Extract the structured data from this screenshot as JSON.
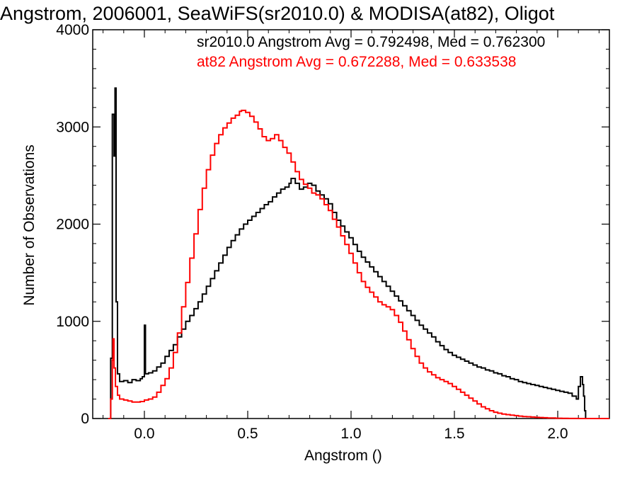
{
  "chart_data": {
    "type": "line",
    "title": "Angstrom, 2006001, SeaWiFS(sr2010.0) & MODISA(at82), Oligot",
    "xlabel": "Angstrom ()",
    "ylabel": "Number of Observations",
    "xlim": [
      -0.25,
      2.25
    ],
    "ylim": [
      0,
      4000
    ],
    "xticks": [
      "0.0",
      "0.5",
      "1.0",
      "1.5",
      "2.0"
    ],
    "yticks": [
      "0",
      "1000",
      "2000",
      "3000",
      "4000"
    ],
    "legend_placement": "top-right",
    "annotations": [
      {
        "text": "sr2010.0 Angstrom Avg = 0.792498, Med = 0.762300",
        "color": "#000000"
      },
      {
        "text": "at82 Angstrom Avg = 0.672288, Med = 0.633538",
        "color": "#ff0000"
      }
    ],
    "series": [
      {
        "color": "#000000",
        "points": [
          [
            -0.165,
            0
          ],
          [
            -0.163,
            620
          ],
          [
            -0.155,
            3130
          ],
          [
            -0.147,
            2700
          ],
          [
            -0.142,
            3400
          ],
          [
            -0.137,
            1200
          ],
          [
            -0.13,
            460
          ],
          [
            -0.12,
            380
          ],
          [
            -0.1,
            390
          ],
          [
            -0.08,
            370
          ],
          [
            -0.06,
            400
          ],
          [
            -0.04,
            390
          ],
          [
            -0.02,
            410
          ],
          [
            -0.01,
            430
          ],
          [
            0.0,
            960
          ],
          [
            0.005,
            460
          ],
          [
            0.02,
            470
          ],
          [
            0.04,
            490
          ],
          [
            0.06,
            530
          ],
          [
            0.08,
            570
          ],
          [
            0.1,
            640
          ],
          [
            0.12,
            700
          ],
          [
            0.14,
            760
          ],
          [
            0.16,
            840
          ],
          [
            0.18,
            920
          ],
          [
            0.2,
            1000
          ],
          [
            0.22,
            1060
          ],
          [
            0.24,
            1130
          ],
          [
            0.26,
            1200
          ],
          [
            0.28,
            1280
          ],
          [
            0.3,
            1360
          ],
          [
            0.32,
            1440
          ],
          [
            0.34,
            1520
          ],
          [
            0.36,
            1600
          ],
          [
            0.38,
            1680
          ],
          [
            0.4,
            1760
          ],
          [
            0.42,
            1830
          ],
          [
            0.44,
            1890
          ],
          [
            0.46,
            1950
          ],
          [
            0.48,
            2000
          ],
          [
            0.5,
            2040
          ],
          [
            0.52,
            2080
          ],
          [
            0.54,
            2120
          ],
          [
            0.56,
            2160
          ],
          [
            0.58,
            2200
          ],
          [
            0.6,
            2230
          ],
          [
            0.62,
            2280
          ],
          [
            0.64,
            2320
          ],
          [
            0.66,
            2360
          ],
          [
            0.68,
            2380
          ],
          [
            0.7,
            2420
          ],
          [
            0.71,
            2470
          ],
          [
            0.73,
            2420
          ],
          [
            0.75,
            2360
          ],
          [
            0.77,
            2380
          ],
          [
            0.79,
            2420
          ],
          [
            0.81,
            2400
          ],
          [
            0.83,
            2340
          ],
          [
            0.85,
            2300
          ],
          [
            0.87,
            2260
          ],
          [
            0.89,
            2210
          ],
          [
            0.91,
            2120
          ],
          [
            0.93,
            2040
          ],
          [
            0.95,
            1980
          ],
          [
            0.97,
            1920
          ],
          [
            0.99,
            1860
          ],
          [
            1.01,
            1790
          ],
          [
            1.03,
            1720
          ],
          [
            1.05,
            1660
          ],
          [
            1.07,
            1610
          ],
          [
            1.09,
            1560
          ],
          [
            1.11,
            1510
          ],
          [
            1.13,
            1460
          ],
          [
            1.15,
            1410
          ],
          [
            1.17,
            1360
          ],
          [
            1.19,
            1310
          ],
          [
            1.21,
            1260
          ],
          [
            1.23,
            1210
          ],
          [
            1.25,
            1160
          ],
          [
            1.27,
            1110
          ],
          [
            1.29,
            1060
          ],
          [
            1.31,
            1010
          ],
          [
            1.33,
            960
          ],
          [
            1.35,
            920
          ],
          [
            1.37,
            880
          ],
          [
            1.39,
            840
          ],
          [
            1.41,
            790
          ],
          [
            1.43,
            750
          ],
          [
            1.45,
            710
          ],
          [
            1.47,
            680
          ],
          [
            1.49,
            650
          ],
          [
            1.51,
            630
          ],
          [
            1.53,
            610
          ],
          [
            1.55,
            590
          ],
          [
            1.57,
            570
          ],
          [
            1.59,
            550
          ],
          [
            1.61,
            530
          ],
          [
            1.63,
            520
          ],
          [
            1.65,
            500
          ],
          [
            1.67,
            490
          ],
          [
            1.69,
            470
          ],
          [
            1.71,
            460
          ],
          [
            1.73,
            440
          ],
          [
            1.75,
            430
          ],
          [
            1.77,
            410
          ],
          [
            1.79,
            400
          ],
          [
            1.81,
            380
          ],
          [
            1.83,
            370
          ],
          [
            1.85,
            360
          ],
          [
            1.87,
            350
          ],
          [
            1.89,
            340
          ],
          [
            1.91,
            330
          ],
          [
            1.93,
            320
          ],
          [
            1.95,
            310
          ],
          [
            1.97,
            300
          ],
          [
            1.99,
            290
          ],
          [
            2.01,
            280
          ],
          [
            2.03,
            270
          ],
          [
            2.05,
            260
          ],
          [
            2.07,
            230
          ],
          [
            2.09,
            200
          ],
          [
            2.1,
            330
          ],
          [
            2.11,
            430
          ],
          [
            2.12,
            350
          ],
          [
            2.125,
            230
          ],
          [
            2.13,
            80
          ],
          [
            2.135,
            0
          ]
        ]
      },
      {
        "color": "#ff0000",
        "points": [
          [
            -0.175,
            0
          ],
          [
            -0.168,
            0
          ],
          [
            -0.163,
            200
          ],
          [
            -0.155,
            600
          ],
          [
            -0.152,
            820
          ],
          [
            -0.147,
            520
          ],
          [
            -0.14,
            330
          ],
          [
            -0.13,
            240
          ],
          [
            -0.12,
            200
          ],
          [
            -0.1,
            190
          ],
          [
            -0.08,
            180
          ],
          [
            -0.06,
            170
          ],
          [
            -0.04,
            170
          ],
          [
            -0.02,
            175
          ],
          [
            0.0,
            190
          ],
          [
            0.02,
            200
          ],
          [
            0.04,
            220
          ],
          [
            0.06,
            270
          ],
          [
            0.08,
            340
          ],
          [
            0.1,
            410
          ],
          [
            0.12,
            520
          ],
          [
            0.14,
            680
          ],
          [
            0.16,
            880
          ],
          [
            0.18,
            1150
          ],
          [
            0.2,
            1400
          ],
          [
            0.22,
            1650
          ],
          [
            0.24,
            1900
          ],
          [
            0.26,
            2150
          ],
          [
            0.28,
            2370
          ],
          [
            0.3,
            2560
          ],
          [
            0.32,
            2710
          ],
          [
            0.34,
            2830
          ],
          [
            0.36,
            2920
          ],
          [
            0.38,
            2990
          ],
          [
            0.4,
            3040
          ],
          [
            0.42,
            3090
          ],
          [
            0.44,
            3120
          ],
          [
            0.46,
            3160
          ],
          [
            0.47,
            3170
          ],
          [
            0.49,
            3150
          ],
          [
            0.51,
            3110
          ],
          [
            0.53,
            3050
          ],
          [
            0.55,
            2980
          ],
          [
            0.57,
            2900
          ],
          [
            0.59,
            2860
          ],
          [
            0.61,
            2880
          ],
          [
            0.63,
            2920
          ],
          [
            0.65,
            2860
          ],
          [
            0.67,
            2790
          ],
          [
            0.69,
            2730
          ],
          [
            0.71,
            2640
          ],
          [
            0.73,
            2540
          ],
          [
            0.75,
            2460
          ],
          [
            0.77,
            2410
          ],
          [
            0.79,
            2370
          ],
          [
            0.81,
            2320
          ],
          [
            0.83,
            2300
          ],
          [
            0.85,
            2260
          ],
          [
            0.87,
            2200
          ],
          [
            0.89,
            2140
          ],
          [
            0.91,
            2050
          ],
          [
            0.93,
            1970
          ],
          [
            0.95,
            1880
          ],
          [
            0.97,
            1790
          ],
          [
            0.99,
            1700
          ],
          [
            1.01,
            1600
          ],
          [
            1.03,
            1500
          ],
          [
            1.05,
            1410
          ],
          [
            1.07,
            1350
          ],
          [
            1.09,
            1300
          ],
          [
            1.11,
            1250
          ],
          [
            1.13,
            1200
          ],
          [
            1.15,
            1170
          ],
          [
            1.17,
            1150
          ],
          [
            1.19,
            1120
          ],
          [
            1.21,
            1060
          ],
          [
            1.23,
            990
          ],
          [
            1.25,
            900
          ],
          [
            1.27,
            810
          ],
          [
            1.29,
            720
          ],
          [
            1.31,
            640
          ],
          [
            1.33,
            570
          ],
          [
            1.35,
            520
          ],
          [
            1.37,
            480
          ],
          [
            1.39,
            450
          ],
          [
            1.41,
            420
          ],
          [
            1.43,
            400
          ],
          [
            1.45,
            380
          ],
          [
            1.47,
            360
          ],
          [
            1.49,
            330
          ],
          [
            1.51,
            300
          ],
          [
            1.53,
            270
          ],
          [
            1.55,
            240
          ],
          [
            1.57,
            210
          ],
          [
            1.59,
            180
          ],
          [
            1.61,
            150
          ],
          [
            1.63,
            120
          ],
          [
            1.65,
            100
          ],
          [
            1.67,
            80
          ],
          [
            1.69,
            65
          ],
          [
            1.71,
            55
          ],
          [
            1.73,
            45
          ],
          [
            1.75,
            40
          ],
          [
            1.77,
            35
          ],
          [
            1.79,
            30
          ],
          [
            1.81,
            25
          ],
          [
            1.83,
            20
          ],
          [
            1.85,
            18
          ],
          [
            1.87,
            15
          ],
          [
            1.89,
            12
          ],
          [
            1.91,
            10
          ],
          [
            1.93,
            8
          ],
          [
            1.95,
            6
          ],
          [
            1.97,
            5
          ],
          [
            1.99,
            3
          ],
          [
            2.02,
            2
          ],
          [
            2.05,
            1
          ],
          [
            2.1,
            0
          ],
          [
            2.25,
            0
          ]
        ]
      }
    ]
  }
}
